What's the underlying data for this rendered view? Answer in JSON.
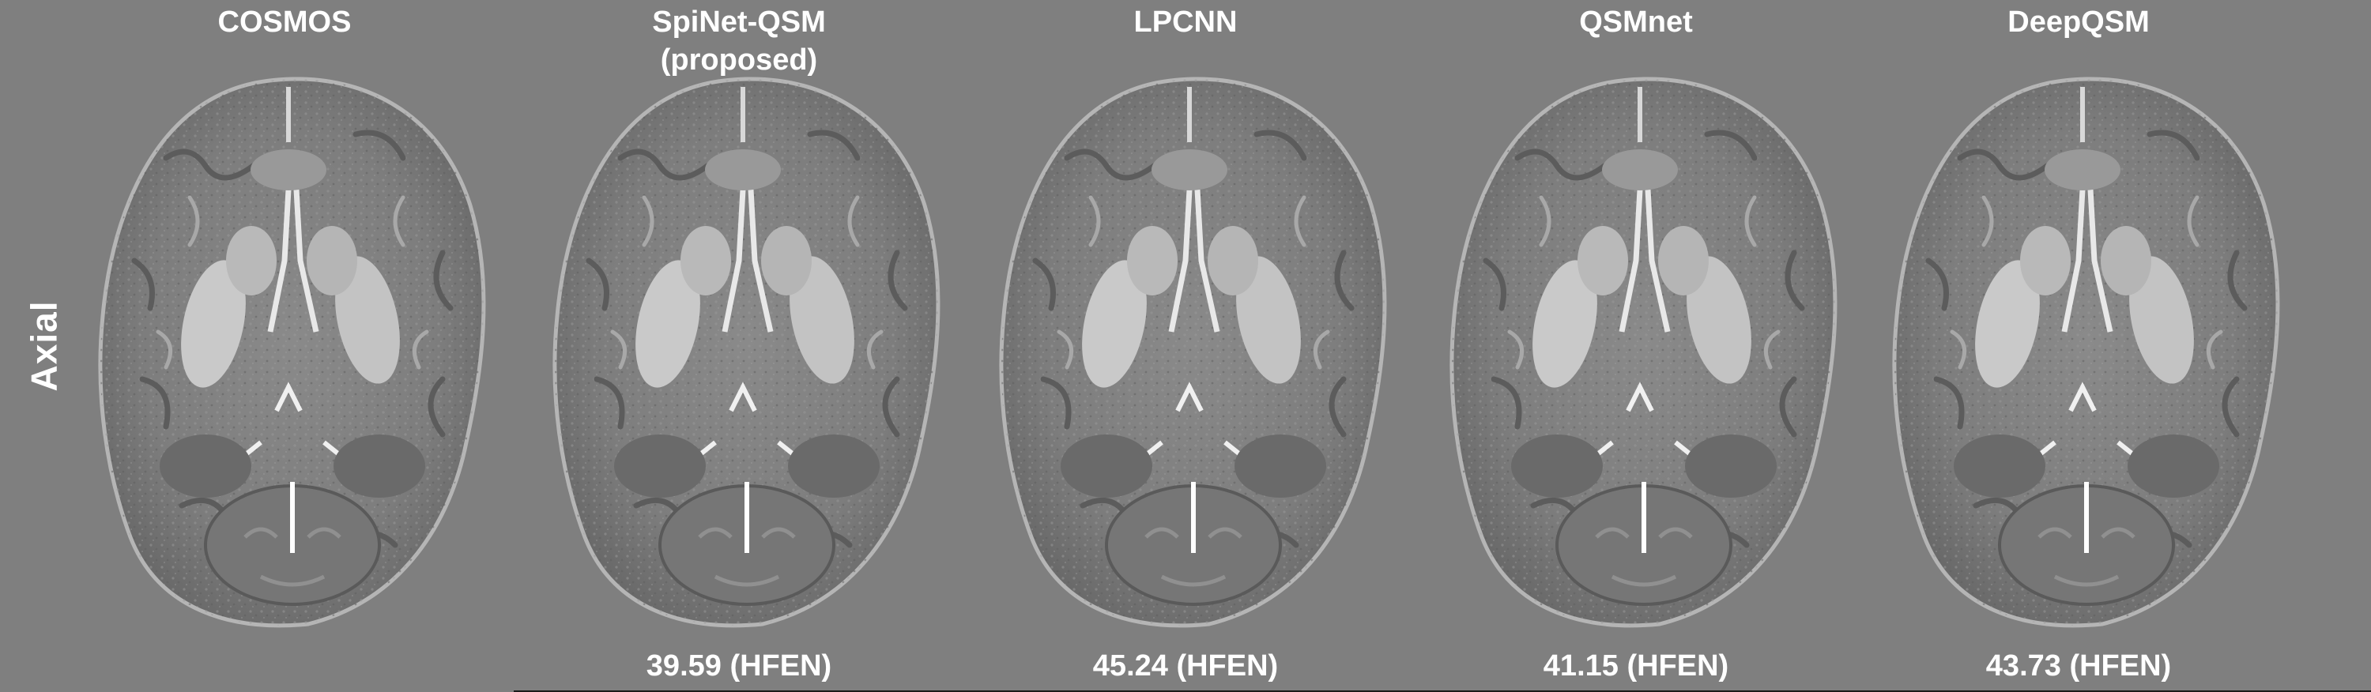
{
  "row_label": "Axial",
  "panels": [
    {
      "title": "COSMOS",
      "subtitle": "",
      "metric": ""
    },
    {
      "title": "SpiNet-QSM",
      "subtitle": "(proposed)",
      "metric": "39.59 (HFEN)"
    },
    {
      "title": "LPCNN",
      "subtitle": "",
      "metric": "45.24 (HFEN)"
    },
    {
      "title": "QSMnet",
      "subtitle": "",
      "metric": "41.15 (HFEN)"
    },
    {
      "title": "DeepQSM",
      "subtitle": "",
      "metric": "43.73 (HFEN)"
    }
  ],
  "colors": {
    "background": "#7f7f7f",
    "text": "#ffffff"
  },
  "icons": [
    "brain-mri-axial-slice"
  ]
}
